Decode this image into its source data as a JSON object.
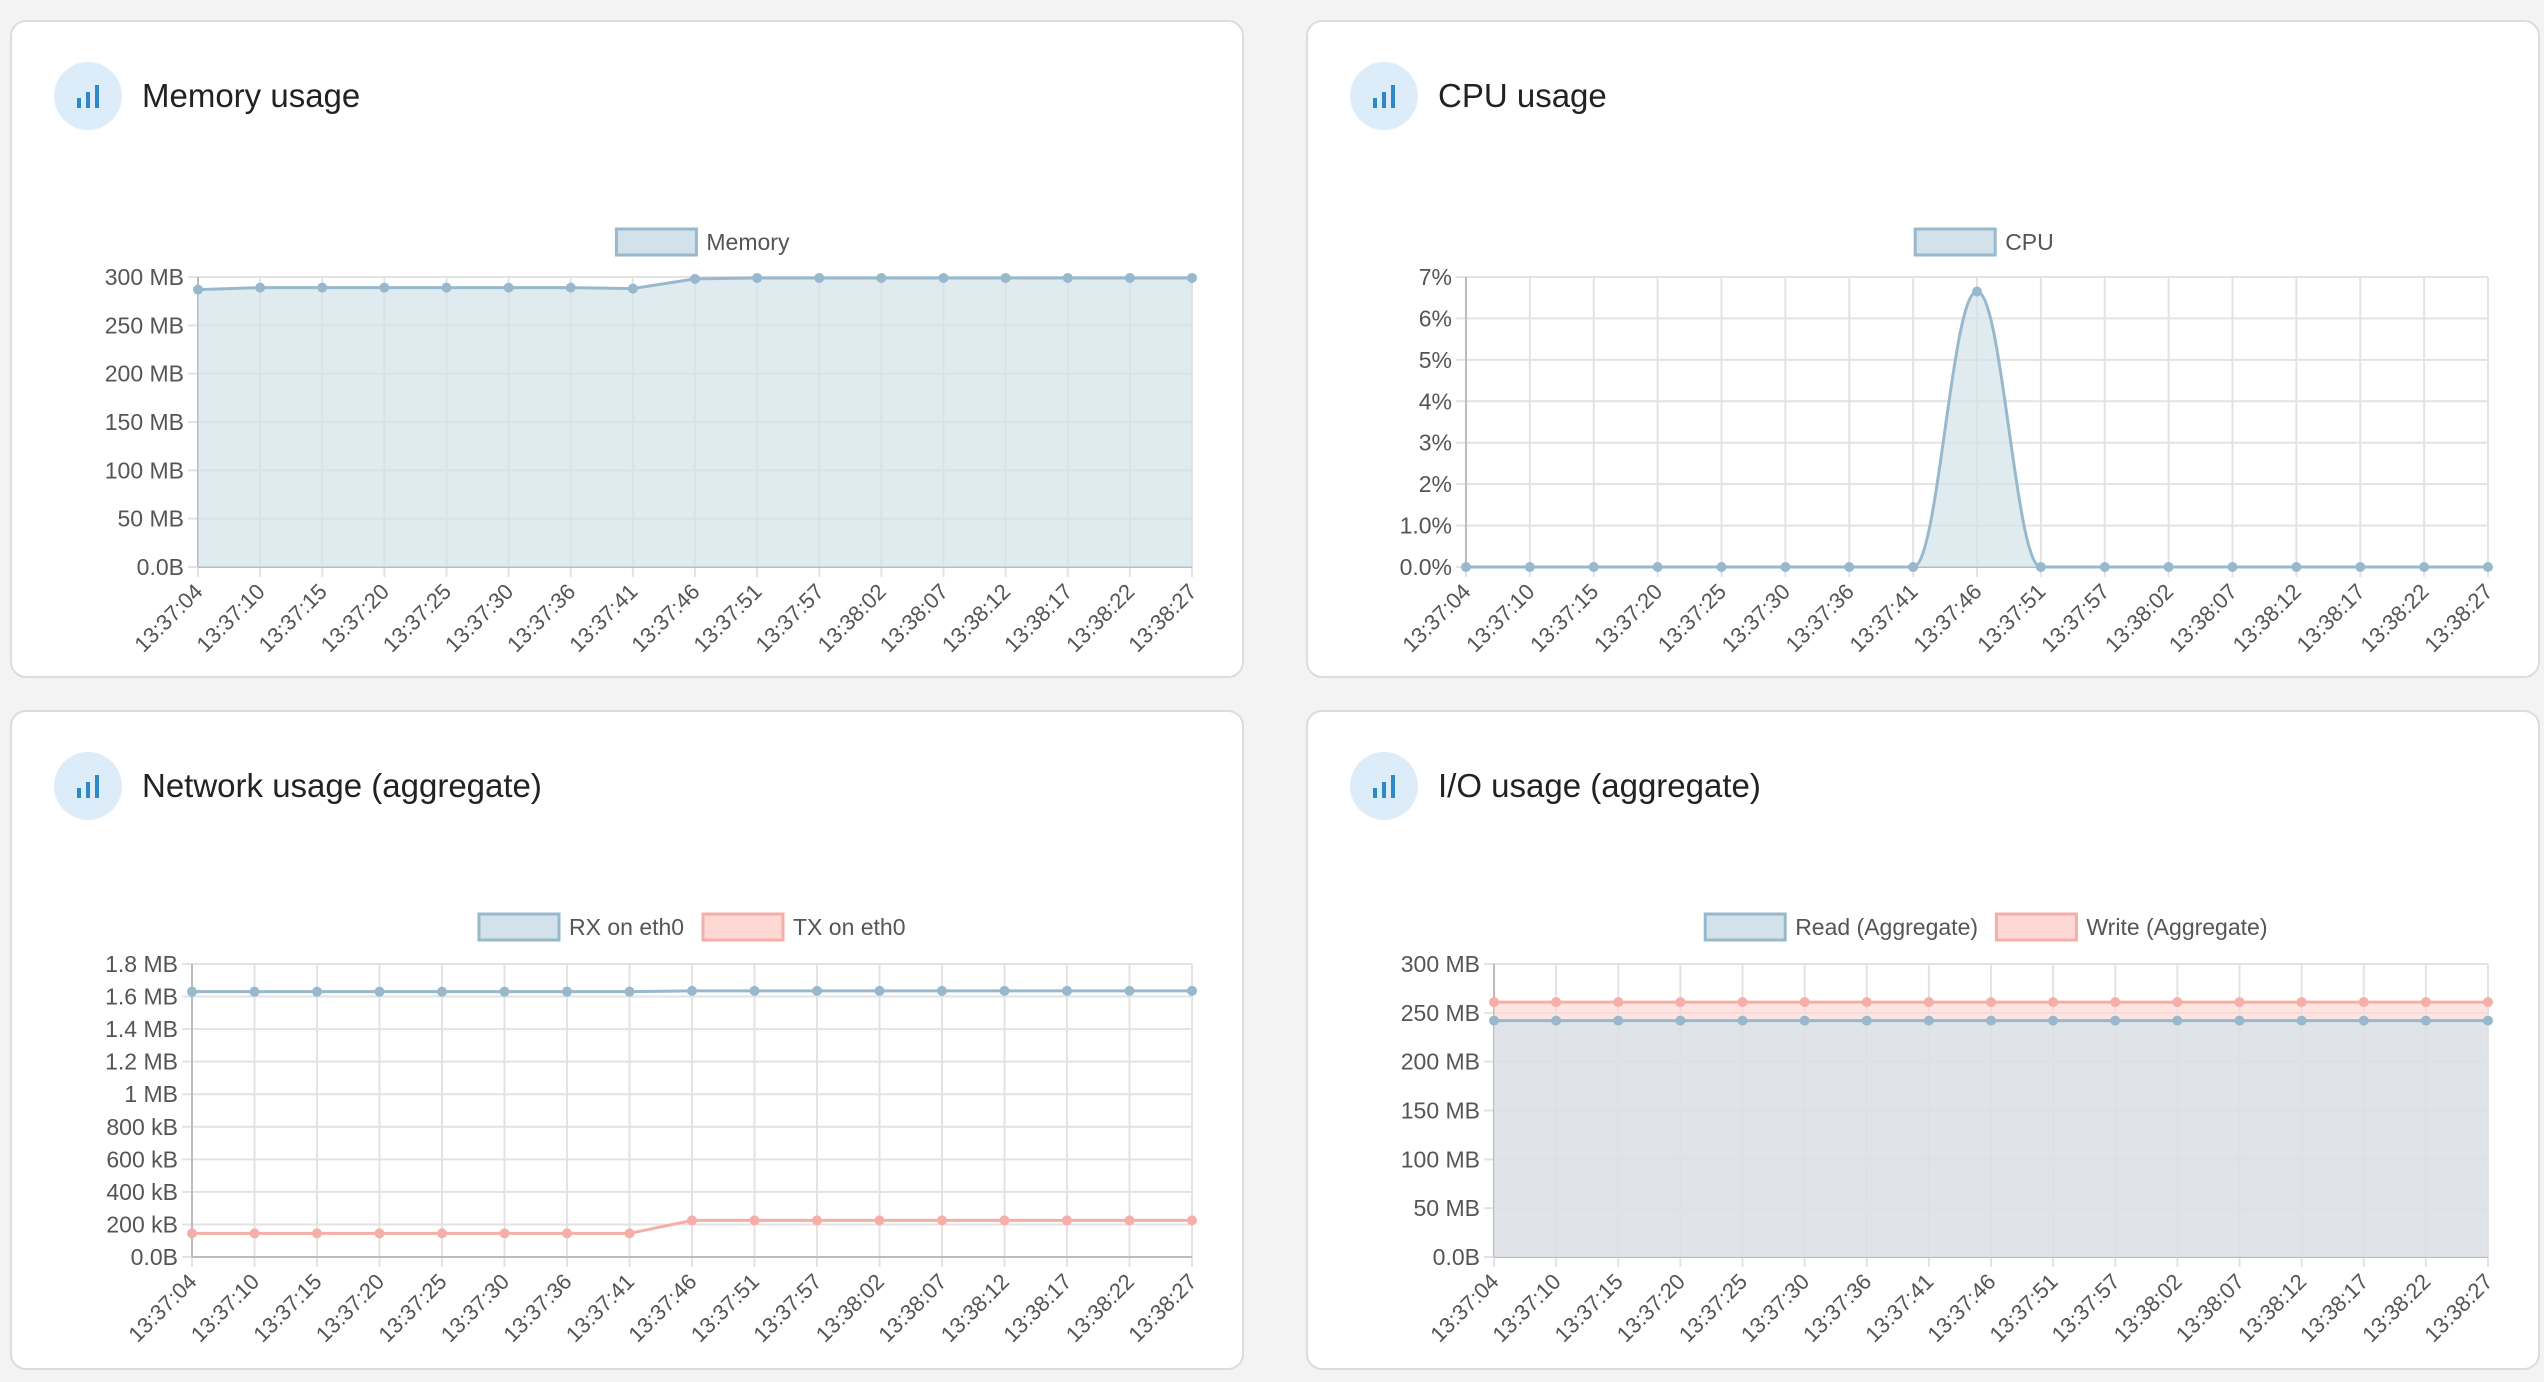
{
  "colors": {
    "blue_line": "#98b8cd",
    "blue_fill": "#d3e2ea",
    "red_line": "#f6afa8",
    "red_fill": "#fdd8d4",
    "grid": "#e3e3e3",
    "icon_bg": "#dcecf8",
    "icon": "#2f88c8"
  },
  "cards": [
    {
      "title": "Memory usage",
      "icon": "bar-chart-icon"
    },
    {
      "title": "CPU usage",
      "icon": "bar-chart-icon"
    },
    {
      "title": "Network usage (aggregate)",
      "icon": "bar-chart-icon"
    },
    {
      "title": "I/O usage (aggregate)",
      "icon": "bar-chart-icon"
    }
  ],
  "chart_data": [
    {
      "type": "area",
      "title": "Memory usage",
      "x": [
        "13:37:04",
        "13:37:10",
        "13:37:15",
        "13:37:20",
        "13:37:25",
        "13:37:30",
        "13:37:36",
        "13:37:41",
        "13:37:46",
        "13:37:51",
        "13:37:57",
        "13:38:02",
        "13:38:07",
        "13:38:12",
        "13:38:17",
        "13:38:22",
        "13:38:27"
      ],
      "y_unit": "MB",
      "ylim": [
        0,
        300
      ],
      "yticks": [
        0,
        50,
        100,
        150,
        200,
        250,
        300
      ],
      "ytick_labels": [
        "0.0B",
        "50 MB",
        "100 MB",
        "150 MB",
        "200 MB",
        "250 MB",
        "300 MB"
      ],
      "legend_position": "top",
      "series": [
        {
          "name": "Memory",
          "color": "blue",
          "fill": true,
          "values": [
            287,
            289,
            289,
            289,
            289,
            289,
            289,
            288,
            298,
            299,
            299,
            299,
            299,
            299,
            299,
            299,
            299
          ]
        }
      ]
    },
    {
      "type": "area",
      "title": "CPU usage",
      "x": [
        "13:37:04",
        "13:37:10",
        "13:37:15",
        "13:37:20",
        "13:37:25",
        "13:37:30",
        "13:37:36",
        "13:37:41",
        "13:37:46",
        "13:37:51",
        "13:37:57",
        "13:38:02",
        "13:38:07",
        "13:38:12",
        "13:38:17",
        "13:38:22",
        "13:38:27"
      ],
      "y_unit": "%",
      "ylim": [
        0,
        7
      ],
      "yticks": [
        0,
        1,
        2,
        3,
        4,
        5,
        6,
        7
      ],
      "ytick_labels": [
        "0.0%",
        "1.0%",
        "2%",
        "3%",
        "4%",
        "5%",
        "6%",
        "7%"
      ],
      "legend_position": "top",
      "series": [
        {
          "name": "CPU",
          "color": "blue",
          "fill": true,
          "values": [
            0,
            0,
            0,
            0,
            0,
            0,
            0,
            0,
            6.65,
            0,
            0,
            0,
            0,
            0,
            0,
            0,
            0
          ]
        }
      ]
    },
    {
      "type": "line",
      "title": "Network usage (aggregate)",
      "x": [
        "13:37:04",
        "13:37:10",
        "13:37:15",
        "13:37:20",
        "13:37:25",
        "13:37:30",
        "13:37:36",
        "13:37:41",
        "13:37:46",
        "13:37:51",
        "13:37:57",
        "13:38:02",
        "13:38:07",
        "13:38:12",
        "13:38:17",
        "13:38:22",
        "13:38:27"
      ],
      "y_unit": "kB",
      "ylim": [
        0,
        1800
      ],
      "yticks": [
        0,
        200,
        400,
        600,
        800,
        1000,
        1200,
        1400,
        1600,
        1800
      ],
      "ytick_labels": [
        "0.0B",
        "200 kB",
        "400 kB",
        "600 kB",
        "800 kB",
        "1 MB",
        "1.2 MB",
        "1.4 MB",
        "1.6 MB",
        "1.8 MB"
      ],
      "legend_position": "top",
      "series": [
        {
          "name": "RX on eth0",
          "color": "blue",
          "fill": false,
          "values": [
            1630,
            1630,
            1630,
            1630,
            1630,
            1630,
            1630,
            1630,
            1635,
            1635,
            1635,
            1635,
            1635,
            1635,
            1635,
            1635,
            1635
          ]
        },
        {
          "name": "TX on eth0",
          "color": "red",
          "fill": false,
          "values": [
            145,
            145,
            145,
            145,
            145,
            145,
            145,
            145,
            225,
            225,
            225,
            225,
            225,
            225,
            225,
            225,
            225
          ]
        }
      ]
    },
    {
      "type": "area",
      "title": "I/O usage (aggregate)",
      "x": [
        "13:37:04",
        "13:37:10",
        "13:37:15",
        "13:37:20",
        "13:37:25",
        "13:37:30",
        "13:37:36",
        "13:37:41",
        "13:37:46",
        "13:37:51",
        "13:37:57",
        "13:38:02",
        "13:38:07",
        "13:38:12",
        "13:38:17",
        "13:38:22",
        "13:38:27"
      ],
      "y_unit": "MB",
      "ylim": [
        0,
        300
      ],
      "yticks": [
        0,
        50,
        100,
        150,
        200,
        250,
        300
      ],
      "ytick_labels": [
        "0.0B",
        "50 MB",
        "100 MB",
        "150 MB",
        "200 MB",
        "250 MB",
        "300 MB"
      ],
      "legend_position": "top",
      "series": [
        {
          "name": "Read (Aggregate)",
          "color": "blue",
          "fill": true,
          "values": [
            242,
            242,
            242,
            242,
            242,
            242,
            242,
            242,
            242,
            242,
            242,
            242,
            242,
            242,
            242,
            242,
            242
          ]
        },
        {
          "name": "Write (Aggregate)",
          "color": "red",
          "fill": true,
          "values": [
            261,
            261,
            261,
            261,
            261,
            261,
            261,
            261,
            261,
            261,
            261,
            261,
            261,
            261,
            261,
            261,
            261
          ]
        }
      ]
    }
  ]
}
